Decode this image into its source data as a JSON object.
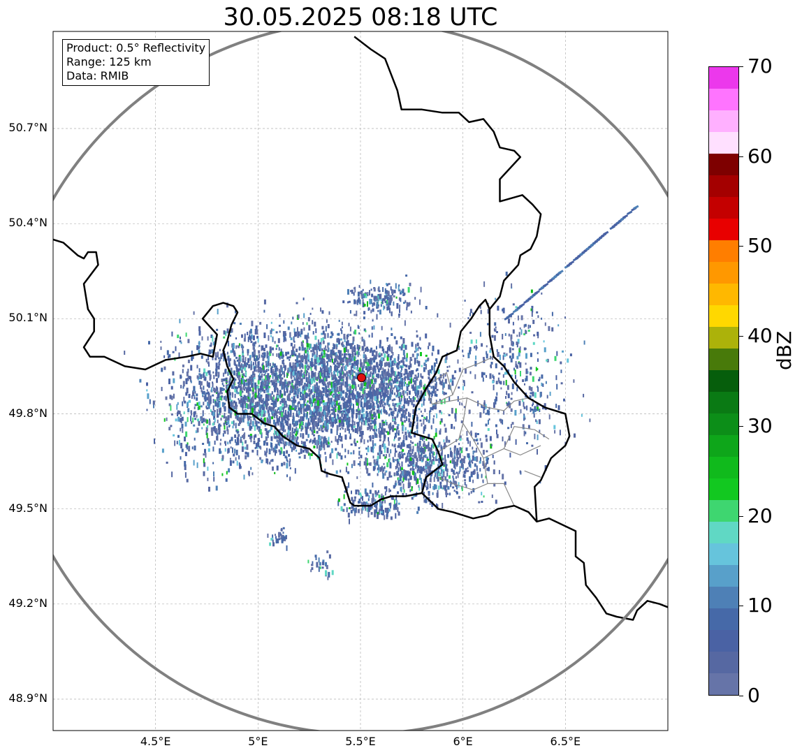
{
  "title": "30.05.2025 08:18 UTC",
  "info_box": {
    "product": "Product: 0.5° Reflectivity",
    "range": "Range: 125 km",
    "data_source": "Data: RMIB"
  },
  "map": {
    "lon_range": [
      4.0,
      7.0
    ],
    "lat_range": [
      48.8,
      51.0
    ],
    "lon_ticks": [
      {
        "value": 4.5,
        "label": "4.5°E"
      },
      {
        "value": 5.0,
        "label": "5°E"
      },
      {
        "value": 5.5,
        "label": "5.5°E"
      },
      {
        "value": 6.0,
        "label": "6°E"
      },
      {
        "value": 6.5,
        "label": "6.5°E"
      }
    ],
    "lat_ticks": [
      {
        "value": 48.9,
        "label": "48.9°N"
      },
      {
        "value": 49.2,
        "label": "49.2°N"
      },
      {
        "value": 49.5,
        "label": "49.5°N"
      },
      {
        "value": 49.8,
        "label": "49.8°N"
      },
      {
        "value": 50.1,
        "label": "50.1°N"
      },
      {
        "value": 50.4,
        "label": "50.4°N"
      },
      {
        "value": 50.7,
        "label": "50.7°N"
      }
    ],
    "radar_site": {
      "lon": 5.505,
      "lat": 49.914,
      "color": "#e01010"
    },
    "range_ring_color": "#808080",
    "grid_color": "#b0b0b0",
    "border_color": "#000000",
    "admin_border_color": "#888888",
    "national_borders": [
      [
        [
          4.0,
          50.35
        ],
        [
          4.05,
          50.34
        ],
        [
          4.12,
          50.3
        ],
        [
          4.15,
          50.29
        ],
        [
          4.17,
          50.31
        ],
        [
          4.21,
          50.31
        ],
        [
          4.22,
          50.27
        ],
        [
          4.15,
          50.21
        ],
        [
          4.17,
          50.13
        ],
        [
          4.2,
          50.1
        ],
        [
          4.2,
          50.06
        ],
        [
          4.15,
          50.01
        ],
        [
          4.18,
          49.98
        ],
        [
          4.25,
          49.98
        ],
        [
          4.35,
          49.95
        ],
        [
          4.45,
          49.94
        ],
        [
          4.55,
          49.97
        ],
        [
          4.65,
          49.98
        ],
        [
          4.72,
          49.99
        ],
        [
          4.78,
          49.98
        ],
        [
          4.8,
          50.05
        ],
        [
          4.73,
          50.1
        ],
        [
          4.78,
          50.14
        ],
        [
          4.83,
          50.15
        ],
        [
          4.88,
          50.14
        ],
        [
          4.9,
          50.12
        ],
        [
          4.87,
          50.08
        ],
        [
          4.85,
          50.03
        ],
        [
          4.83,
          50.0
        ],
        [
          4.85,
          49.95
        ],
        [
          4.88,
          49.91
        ],
        [
          4.85,
          49.87
        ],
        [
          4.86,
          49.82
        ],
        [
          4.9,
          49.8
        ],
        [
          4.97,
          49.8
        ],
        [
          5.03,
          49.77
        ],
        [
          5.08,
          49.76
        ],
        [
          5.12,
          49.73
        ],
        [
          5.19,
          49.7
        ],
        [
          5.25,
          49.69
        ],
        [
          5.3,
          49.66
        ],
        [
          5.31,
          49.62
        ],
        [
          5.35,
          49.61
        ],
        [
          5.41,
          49.6
        ],
        [
          5.43,
          49.56
        ],
        [
          5.45,
          49.52
        ],
        [
          5.47,
          49.51
        ],
        [
          5.55,
          49.51
        ],
        [
          5.6,
          49.53
        ],
        [
          5.65,
          49.54
        ],
        [
          5.72,
          49.54
        ],
        [
          5.8,
          49.55
        ],
        [
          5.88,
          49.5
        ],
        [
          5.95,
          49.49
        ],
        [
          6.05,
          49.47
        ],
        [
          6.12,
          49.48
        ],
        [
          6.17,
          49.5
        ],
        [
          6.25,
          49.51
        ],
        [
          6.32,
          49.49
        ],
        [
          6.36,
          49.46
        ],
        [
          6.42,
          49.47
        ],
        [
          6.55,
          49.43
        ],
        [
          6.55,
          49.35
        ],
        [
          6.59,
          49.33
        ],
        [
          6.6,
          49.26
        ],
        [
          6.65,
          49.22
        ],
        [
          6.7,
          49.17
        ],
        [
          6.75,
          49.16
        ],
        [
          6.83,
          49.15
        ],
        [
          6.85,
          49.18
        ],
        [
          6.9,
          49.21
        ],
        [
          6.96,
          49.2
        ],
        [
          7.0,
          49.19
        ]
      ],
      [
        [
          5.47,
          50.99
        ],
        [
          5.55,
          50.95
        ],
        [
          5.62,
          50.92
        ],
        [
          5.65,
          50.87
        ],
        [
          5.68,
          50.82
        ],
        [
          5.7,
          50.76
        ],
        [
          5.8,
          50.76
        ],
        [
          5.9,
          50.75
        ],
        [
          5.98,
          50.75
        ],
        [
          6.03,
          50.72
        ],
        [
          6.1,
          50.73
        ],
        [
          6.15,
          50.69
        ],
        [
          6.18,
          50.64
        ],
        [
          6.25,
          50.63
        ],
        [
          6.28,
          50.61
        ],
        [
          6.18,
          50.54
        ],
        [
          6.18,
          50.47
        ],
        [
          6.29,
          50.49
        ],
        [
          6.34,
          50.46
        ],
        [
          6.38,
          50.43
        ],
        [
          6.36,
          50.36
        ],
        [
          6.33,
          50.32
        ],
        [
          6.28,
          50.3
        ],
        [
          6.27,
          50.27
        ],
        [
          6.2,
          50.22
        ],
        [
          6.18,
          50.17
        ],
        [
          6.13,
          50.13
        ],
        [
          6.11,
          50.16
        ],
        [
          6.08,
          50.14
        ],
        [
          6.04,
          50.1
        ],
        [
          5.99,
          50.06
        ],
        [
          5.97,
          50.0
        ],
        [
          5.9,
          49.98
        ],
        [
          5.87,
          49.93
        ],
        [
          5.82,
          49.88
        ],
        [
          5.77,
          49.82
        ],
        [
          5.75,
          49.74
        ],
        [
          5.85,
          49.72
        ],
        [
          5.88,
          49.68
        ],
        [
          5.9,
          49.64
        ],
        [
          5.82,
          49.6
        ],
        [
          5.8,
          49.55
        ]
      ],
      [
        [
          6.13,
          50.13
        ],
        [
          6.13,
          50.05
        ],
        [
          6.15,
          49.98
        ],
        [
          6.2,
          49.95
        ],
        [
          6.25,
          49.9
        ],
        [
          6.32,
          49.85
        ],
        [
          6.4,
          49.82
        ],
        [
          6.5,
          49.8
        ],
        [
          6.52,
          49.73
        ],
        [
          6.5,
          49.7
        ],
        [
          6.43,
          49.66
        ],
        [
          6.38,
          49.59
        ],
        [
          6.35,
          49.57
        ],
        [
          6.36,
          49.46
        ]
      ]
    ],
    "admin_borders": [
      [
        [
          5.85,
          49.9
        ],
        [
          5.92,
          49.93
        ],
        [
          5.95,
          49.86
        ],
        [
          5.85,
          49.83
        ],
        [
          5.82,
          49.88
        ]
      ],
      [
        [
          5.85,
          49.83
        ],
        [
          6.02,
          49.85
        ],
        [
          6.12,
          49.82
        ],
        [
          6.2,
          49.81
        ],
        [
          6.25,
          49.84
        ],
        [
          6.32,
          49.85
        ]
      ],
      [
        [
          5.95,
          49.86
        ],
        [
          6.0,
          49.94
        ],
        [
          6.08,
          49.96
        ],
        [
          6.15,
          49.98
        ]
      ],
      [
        [
          6.02,
          49.85
        ],
        [
          6.0,
          49.77
        ],
        [
          6.05,
          49.72
        ],
        [
          6.1,
          49.66
        ],
        [
          6.2,
          49.69
        ],
        [
          6.28,
          49.67
        ],
        [
          6.38,
          49.7
        ]
      ],
      [
        [
          5.88,
          49.68
        ],
        [
          5.98,
          49.72
        ],
        [
          6.0,
          49.77
        ]
      ],
      [
        [
          6.1,
          49.66
        ],
        [
          6.12,
          49.58
        ],
        [
          6.2,
          49.58
        ],
        [
          6.25,
          49.51
        ]
      ],
      [
        [
          6.2,
          49.69
        ],
        [
          6.25,
          49.76
        ],
        [
          6.35,
          49.75
        ],
        [
          6.42,
          49.72
        ]
      ],
      [
        [
          6.12,
          49.58
        ],
        [
          6.05,
          49.56
        ],
        [
          5.95,
          49.58
        ],
        [
          5.88,
          49.6
        ]
      ],
      [
        [
          6.3,
          49.62
        ],
        [
          6.38,
          49.6
        ]
      ]
    ]
  },
  "echo_clusters": [
    {
      "lon": 5.0,
      "lat": 49.85,
      "spread_lon": 0.45,
      "spread_lat": 0.22,
      "count": 1700
    },
    {
      "lon": 5.4,
      "lat": 49.86,
      "spread_lon": 0.35,
      "spread_lat": 0.18,
      "count": 1200
    },
    {
      "lon": 5.7,
      "lat": 49.9,
      "spread_lon": 0.25,
      "spread_lat": 0.15,
      "count": 600
    },
    {
      "lon": 5.8,
      "lat": 49.65,
      "spread_lon": 0.35,
      "spread_lat": 0.12,
      "count": 700
    },
    {
      "lon": 5.3,
      "lat": 50.0,
      "spread_lon": 0.35,
      "spread_lat": 0.12,
      "count": 350
    },
    {
      "lon": 5.6,
      "lat": 50.17,
      "spread_lon": 0.15,
      "spread_lat": 0.05,
      "count": 160
    },
    {
      "lon": 6.25,
      "lat": 49.92,
      "spread_lon": 0.3,
      "spread_lat": 0.25,
      "count": 350
    },
    {
      "lon": 5.55,
      "lat": 49.52,
      "spread_lon": 0.15,
      "spread_lat": 0.04,
      "count": 120
    },
    {
      "lon": 5.1,
      "lat": 49.42,
      "spread_lon": 0.06,
      "spread_lat": 0.03,
      "count": 30
    },
    {
      "lon": 5.3,
      "lat": 49.33,
      "spread_lon": 0.08,
      "spread_lat": 0.04,
      "count": 25
    }
  ],
  "clutter_spoke": {
    "from": [
      6.2,
      50.1
    ],
    "to": [
      6.83,
      50.45
    ]
  },
  "colorbar": {
    "label": "dBZ",
    "min": 0,
    "max": 70,
    "ticks": [
      {
        "value": 0,
        "label": "0"
      },
      {
        "value": 10,
        "label": "10"
      },
      {
        "value": 20,
        "label": "20"
      },
      {
        "value": 30,
        "label": "30"
      },
      {
        "value": 40,
        "label": "40"
      },
      {
        "value": 50,
        "label": "50"
      },
      {
        "value": 60,
        "label": "60"
      },
      {
        "value": 70,
        "label": "70"
      }
    ],
    "colors": [
      "#6674a8",
      "#5668a2",
      "#4a62a4",
      "#4669a8",
      "#4e80b6",
      "#58a0ca",
      "#66c4dc",
      "#60d8c4",
      "#3ed670",
      "#12c820",
      "#10ba1c",
      "#0ea61a",
      "#0c8e18",
      "#0a7a14",
      "#065e0c",
      "#487a0a",
      "#acb20a",
      "#ffd800",
      "#ffb800",
      "#ff9800",
      "#ff7e00",
      "#e80000",
      "#c40000",
      "#a40000",
      "#7e0000",
      "#ffe0ff",
      "#ffb0ff",
      "#ff74ff",
      "#ec38ec"
    ]
  }
}
